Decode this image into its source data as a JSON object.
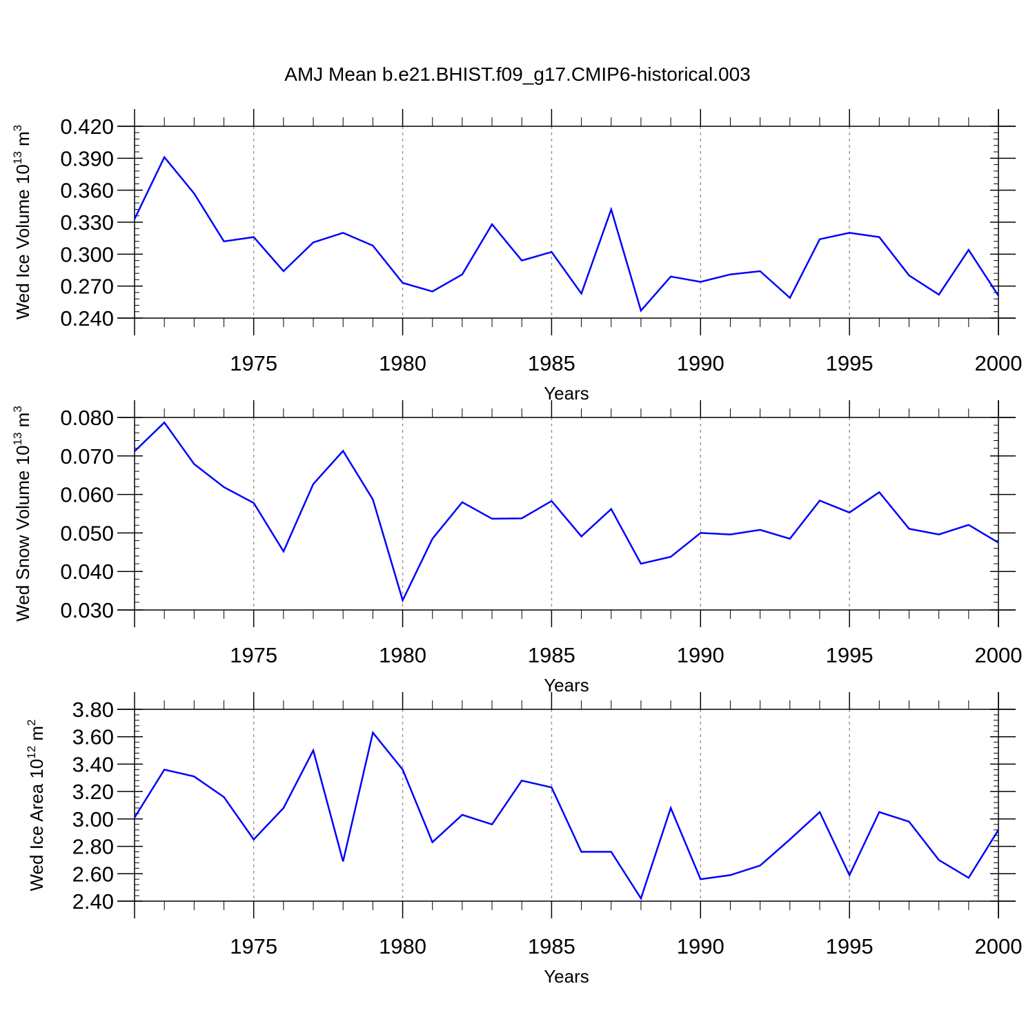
{
  "chart_data": [
    {
      "type": "line",
      "title": "AMJ Mean b.e21.BHIST.f09_g17.CMIP6-historical.003",
      "xlabel": "Years",
      "ylabel_main": "Wed Ice Volume 10",
      "ylabel_sup": "13",
      "ylabel_unit": "m",
      "ylabel_unit_sup": "3",
      "xlim": [
        1971,
        2000
      ],
      "ylim": [
        0.24,
        0.42
      ],
      "yticks": [
        "0.420",
        "0.390",
        "0.360",
        "0.330",
        "0.300",
        "0.270",
        "0.240"
      ],
      "ytick_values": [
        0.42,
        0.39,
        0.36,
        0.33,
        0.3,
        0.27,
        0.24
      ],
      "xticks": [
        "1975",
        "1980",
        "1985",
        "1990",
        "1995",
        "2000"
      ],
      "xtick_values": [
        1975,
        1980,
        1985,
        1990,
        1995,
        2000
      ],
      "grid": "dashed vertical at major x ticks",
      "series": [
        {
          "name": "Wed Ice Volume",
          "color": "#0000ff",
          "x": [
            1971,
            1972,
            1973,
            1974,
            1975,
            1976,
            1977,
            1978,
            1979,
            1980,
            1981,
            1982,
            1983,
            1984,
            1985,
            1986,
            1987,
            1988,
            1989,
            1990,
            1991,
            1992,
            1993,
            1994,
            1995,
            1996,
            1997,
            1998,
            1999,
            2000
          ],
          "values": [
            0.333,
            0.391,
            0.357,
            0.312,
            0.316,
            0.284,
            0.311,
            0.32,
            0.308,
            0.273,
            0.265,
            0.281,
            0.328,
            0.294,
            0.302,
            0.263,
            0.342,
            0.247,
            0.279,
            0.274,
            0.281,
            0.284,
            0.259,
            0.314,
            0.32,
            0.316,
            0.28,
            0.262,
            0.304,
            0.261
          ]
        }
      ]
    },
    {
      "type": "line",
      "xlabel": "Years",
      "ylabel_main": "Wed Snow Volume 10",
      "ylabel_sup": "13",
      "ylabel_unit": "m",
      "ylabel_unit_sup": "3",
      "xlim": [
        1971,
        2000
      ],
      "ylim": [
        0.03,
        0.08
      ],
      "yticks": [
        "0.080",
        "0.070",
        "0.060",
        "0.050",
        "0.040",
        "0.030"
      ],
      "ytick_values": [
        0.08,
        0.07,
        0.06,
        0.05,
        0.04,
        0.03
      ],
      "xticks": [
        "1975",
        "1980",
        "1985",
        "1990",
        "1995",
        "2000"
      ],
      "xtick_values": [
        1975,
        1980,
        1985,
        1990,
        1995,
        2000
      ],
      "grid": "dashed vertical at major x ticks",
      "series": [
        {
          "name": "Wed Snow Volume",
          "color": "#0000ff",
          "x": [
            1971,
            1972,
            1973,
            1974,
            1975,
            1976,
            1977,
            1978,
            1979,
            1980,
            1981,
            1982,
            1983,
            1984,
            1985,
            1986,
            1987,
            1988,
            1989,
            1990,
            1991,
            1992,
            1993,
            1994,
            1995,
            1996,
            1997,
            1998,
            1999,
            2000
          ],
          "values": [
            0.0712,
            0.0787,
            0.0679,
            0.0619,
            0.0578,
            0.0452,
            0.0627,
            0.0713,
            0.0587,
            0.0325,
            0.0485,
            0.058,
            0.0537,
            0.0538,
            0.0583,
            0.0491,
            0.0562,
            0.042,
            0.0438,
            0.05,
            0.0496,
            0.0508,
            0.0485,
            0.0584,
            0.0553,
            0.0606,
            0.0511,
            0.0496,
            0.0521,
            0.0475
          ]
        }
      ]
    },
    {
      "type": "line",
      "xlabel": "Years",
      "ylabel_main": "Wed Ice Area 10",
      "ylabel_sup": "12",
      "ylabel_unit": "m",
      "ylabel_unit_sup": "2",
      "xlim": [
        1971,
        2000
      ],
      "ylim": [
        2.4,
        3.8
      ],
      "yticks": [
        "3.80",
        "3.60",
        "3.40",
        "3.20",
        "3.00",
        "2.80",
        "2.60",
        "2.40"
      ],
      "ytick_values": [
        3.8,
        3.6,
        3.4,
        3.2,
        3.0,
        2.8,
        2.6,
        2.4
      ],
      "xticks": [
        "1975",
        "1980",
        "1985",
        "1990",
        "1995",
        "2000"
      ],
      "xtick_values": [
        1975,
        1980,
        1985,
        1990,
        1995,
        2000
      ],
      "grid": "dashed vertical at major x ticks",
      "series": [
        {
          "name": "Wed Ice Area",
          "color": "#0000ff",
          "x": [
            1971,
            1972,
            1973,
            1974,
            1975,
            1976,
            1977,
            1978,
            1979,
            1980,
            1981,
            1982,
            1983,
            1984,
            1985,
            1986,
            1987,
            1988,
            1989,
            1990,
            1991,
            1992,
            1993,
            1994,
            1995,
            1996,
            1997,
            1998,
            1999,
            2000
          ],
          "values": [
            3.01,
            3.36,
            3.31,
            3.16,
            2.85,
            3.08,
            3.5,
            2.69,
            3.63,
            3.36,
            2.83,
            3.03,
            2.96,
            3.28,
            3.23,
            2.76,
            2.76,
            2.42,
            3.08,
            2.56,
            2.59,
            2.66,
            2.85,
            3.05,
            2.59,
            3.05,
            2.98,
            2.7,
            2.57,
            2.92
          ]
        }
      ]
    }
  ]
}
